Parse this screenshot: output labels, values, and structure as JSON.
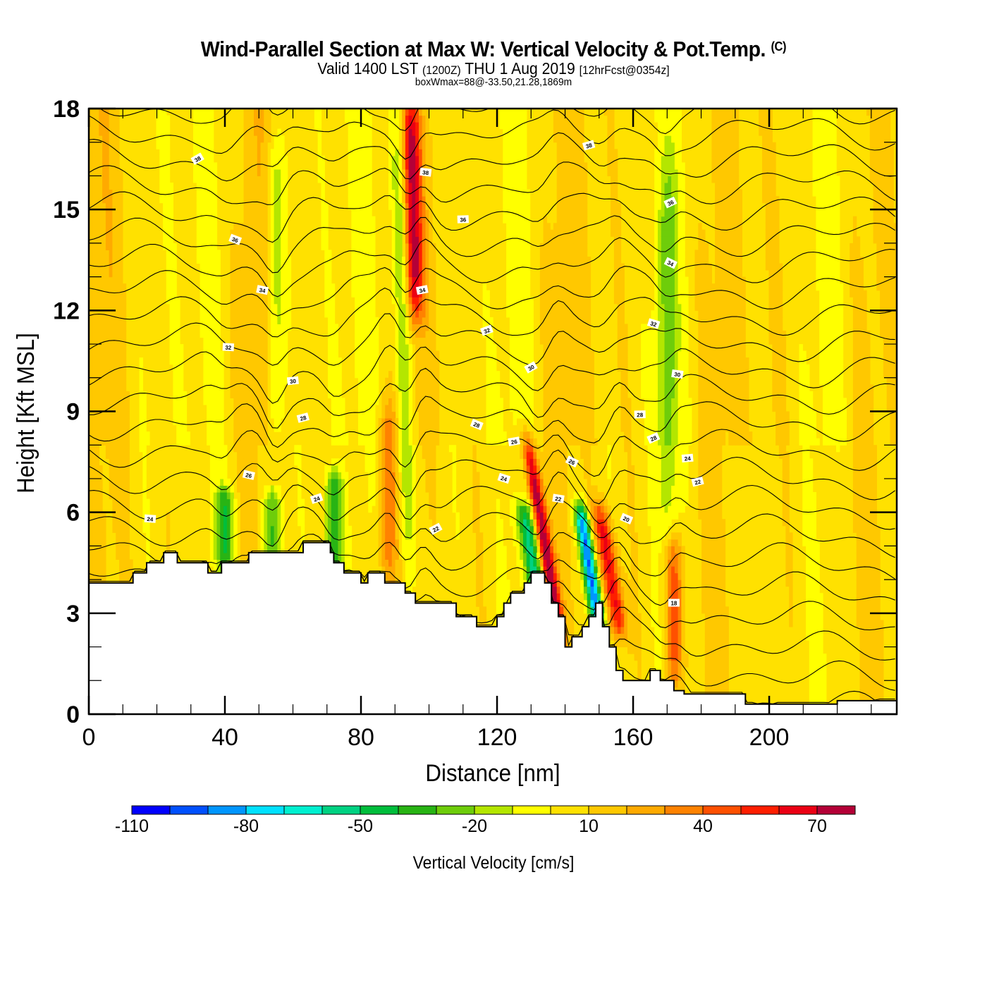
{
  "header": {
    "title": "Wind-Parallel Section at Max W: Vertical Velocity & Pot.Temp.",
    "title_mark": "(C)",
    "subtitle_a": "Valid 1400 LST",
    "subtitle_b": "(1200Z)",
    "subtitle_c": "THU 1 Aug 2019",
    "subtitle_d": "[12hrFcst@0354z]",
    "info": "boxWmax=88@-33.50,21.28,1869m"
  },
  "chart_data": {
    "type": "heatmap",
    "title": "Wind-Parallel Section at Max W: Vertical Velocity & Pot.Temp.",
    "xlabel": "Distance [nm]",
    "ylabel": "Height [Kft MSL]",
    "xlim": [
      0,
      237.5
    ],
    "ylim": [
      0,
      18
    ],
    "x_ticks": [
      "0",
      "40",
      "80",
      "120",
      "160",
      "200"
    ],
    "x_tick_values": [
      0,
      40,
      80,
      120,
      160,
      200
    ],
    "y_ticks": [
      "0",
      "3",
      "6",
      "9",
      "12",
      "15",
      "18"
    ],
    "y_tick_values": [
      0,
      3,
      6,
      9,
      12,
      15,
      18
    ],
    "colorbar": {
      "label": "Vertical Velocity [cm/s]",
      "boundaries": [
        -110,
        -100,
        -90,
        -80,
        -70,
        -60,
        -50,
        -40,
        -30,
        -20,
        -10,
        0,
        10,
        20,
        30,
        40,
        50,
        60,
        70,
        80
      ],
      "tick_labels": [
        "-110",
        "-80",
        "-50",
        "-20",
        "10",
        "40",
        "70"
      ],
      "tick_values": [
        -110,
        -80,
        -50,
        -20,
        10,
        40,
        70
      ],
      "colors": [
        "#0000ff",
        "#0050ff",
        "#0096ff",
        "#00e1ff",
        "#00f0d0",
        "#00d282",
        "#00be3c",
        "#28b414",
        "#6ecd0a",
        "#b4e600",
        "#ffff00",
        "#ffe100",
        "#ffc800",
        "#ffaa00",
        "#ff8200",
        "#ff5000",
        "#ff1e00",
        "#eb0014",
        "#b40037"
      ]
    },
    "w_features": [
      {
        "x_nm": 98,
        "z_top": 18,
        "z_bot": 12,
        "w": 60
      },
      {
        "x_nm": 94,
        "z_top": 18,
        "z_bot": 3.5,
        "w": -30
      },
      {
        "x_nm": 138,
        "z_top": 8,
        "z_bot": 2.5,
        "w": 75
      },
      {
        "x_nm": 150,
        "z_top": 6,
        "z_bot": 2.6,
        "w": -100
      },
      {
        "x_nm": 156,
        "z_top": 6,
        "z_bot": 2.5,
        "w": 60
      },
      {
        "x_nm": 132,
        "z_top": 6,
        "z_bot": 3.5,
        "w": -55
      },
      {
        "x_nm": 172,
        "z_top": 5,
        "z_bot": 1,
        "w": 40
      },
      {
        "x_nm": 40,
        "z_top": 6.5,
        "z_bot": 4.5,
        "w": -40
      },
      {
        "x_nm": 54,
        "z_top": 6.5,
        "z_bot": 4.8,
        "w": -40
      },
      {
        "x_nm": 72,
        "z_top": 7,
        "z_bot": 4.2,
        "w": -45
      },
      {
        "x_nm": 55,
        "z_top": 17,
        "z_bot": 8,
        "w": -25
      },
      {
        "x_nm": 170,
        "z_top": 16,
        "z_bot": 6,
        "w": -25
      },
      {
        "x_nm": 88,
        "z_top": 9,
        "z_bot": 4,
        "w": 30
      }
    ],
    "terrain_kft": {
      "x_nm": [
        0,
        13,
        17,
        22,
        26,
        35,
        39,
        47,
        54,
        63,
        68,
        71,
        72,
        75,
        80,
        82,
        87,
        93,
        96,
        103,
        108,
        114,
        120,
        122,
        124,
        128,
        130,
        134,
        136,
        138,
        140,
        142,
        145,
        147,
        149,
        151,
        153,
        155,
        157,
        165,
        168,
        172,
        175,
        190,
        193,
        200,
        220,
        232,
        237.5
      ],
      "z": [
        3.9,
        4.2,
        4.5,
        4.8,
        4.5,
        4.2,
        4.5,
        4.8,
        4.8,
        5.1,
        5.1,
        4.8,
        4.5,
        4.2,
        3.9,
        4.2,
        3.9,
        3.6,
        3.3,
        3.3,
        2.9,
        2.6,
        2.9,
        3.3,
        3.6,
        3.9,
        4.2,
        3.9,
        3.3,
        2.9,
        2.0,
        2.3,
        2.6,
        2.9,
        3.3,
        2.6,
        2.0,
        1.3,
        1.0,
        1.3,
        1.0,
        0.7,
        0.6,
        0.6,
        0.3,
        0.3,
        0.4,
        0.4,
        0.4
      ]
    },
    "theta_contours": {
      "label_values": [
        "38",
        "38",
        "38",
        "36",
        "36",
        "36",
        "34",
        "34",
        "34",
        "32",
        "32",
        "32",
        "30",
        "30",
        "30",
        "28",
        "28",
        "28",
        "28",
        "26",
        "26",
        "26",
        "24",
        "24",
        "24",
        "24",
        "22",
        "22",
        "22",
        "20",
        "18"
      ]
    }
  }
}
